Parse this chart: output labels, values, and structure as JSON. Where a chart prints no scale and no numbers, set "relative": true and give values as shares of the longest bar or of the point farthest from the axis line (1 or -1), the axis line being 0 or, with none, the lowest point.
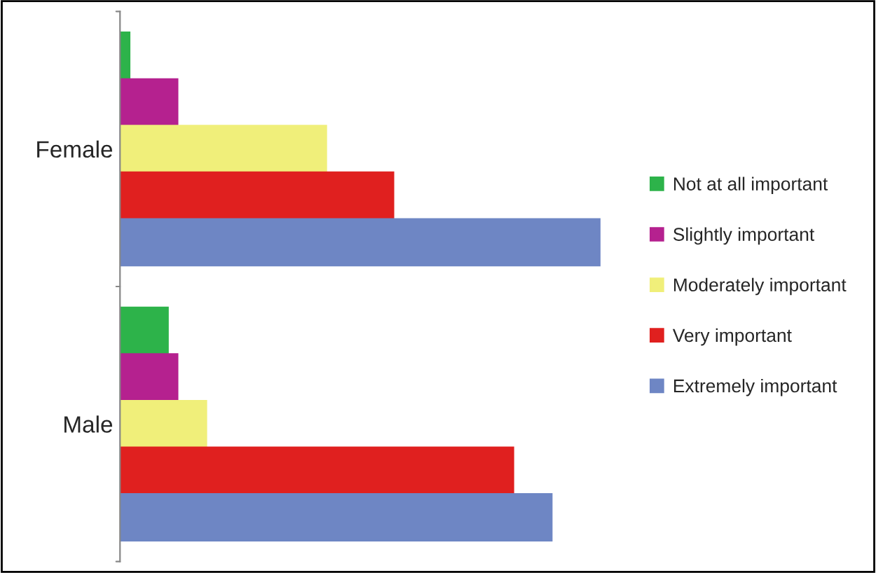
{
  "chart_data": {
    "type": "bar",
    "orientation": "horizontal",
    "relative": true,
    "categories": [
      "Female",
      "Male"
    ],
    "legend": "right",
    "series": [
      {
        "name": "Not at all important",
        "color": "#2db34a",
        "values": [
          0.02,
          0.1
        ]
      },
      {
        "name": "Slightly important",
        "color": "#b5218f",
        "values": [
          0.12,
          0.12
        ]
      },
      {
        "name": "Moderately important",
        "color": "#f0ef7a",
        "values": [
          0.43,
          0.18
        ]
      },
      {
        "name": "Very important",
        "color": "#e0201f",
        "values": [
          0.57,
          0.82
        ]
      },
      {
        "name": "Extremely important",
        "color": "#6e86c4",
        "values": [
          1,
          0.9
        ]
      }
    ]
  }
}
